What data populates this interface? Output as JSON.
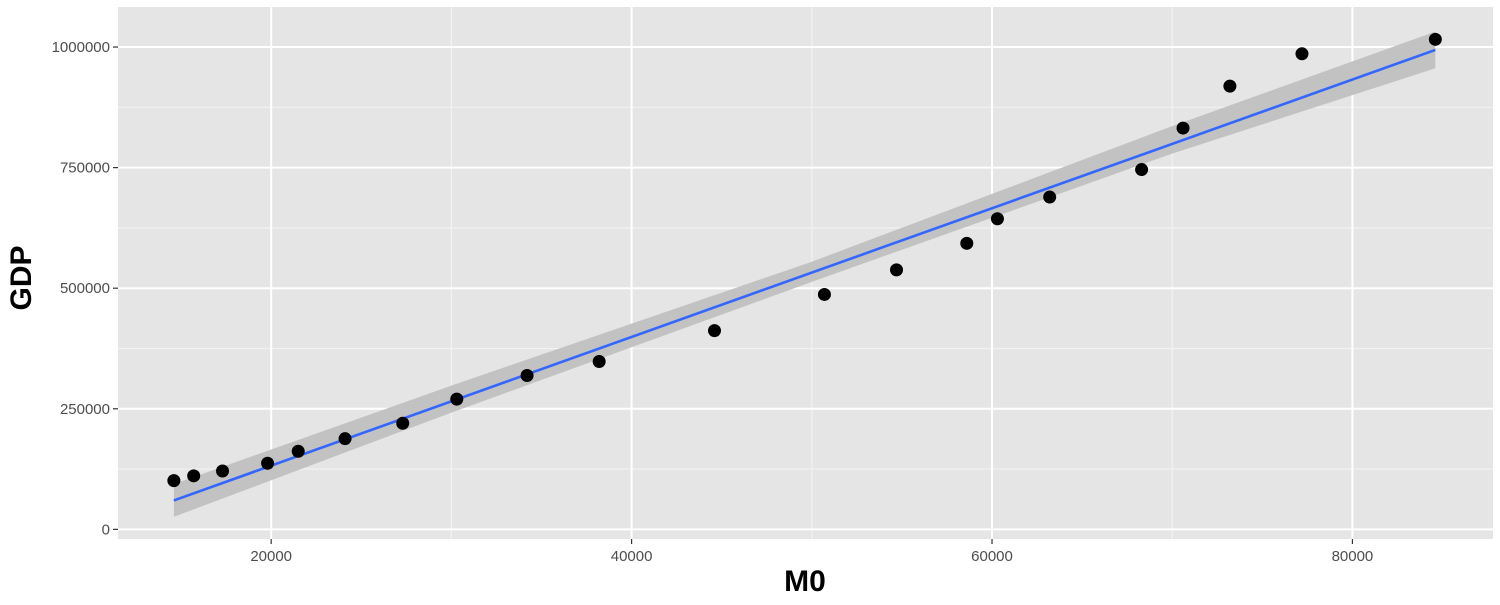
{
  "chart_data": {
    "type": "scatter",
    "title": "",
    "xlabel": "M0",
    "ylabel": "GDP",
    "xlim": [
      11500,
      87800
    ],
    "ylim": [
      -20000,
      1083000
    ],
    "x_ticks": [
      20000,
      40000,
      60000,
      80000
    ],
    "x_tick_labels": [
      "20000",
      "40000",
      "60000",
      "80000"
    ],
    "y_ticks": [
      0,
      250000,
      500000,
      750000,
      1000000
    ],
    "y_tick_labels": [
      "0",
      "250000",
      "500000",
      "750000",
      "1000000"
    ],
    "grid": true,
    "legend": "none",
    "colors": {
      "panel": "#e5e5e5",
      "grid_major": "#ffffff",
      "grid_minor": "#f2f2f2",
      "point": "#000000",
      "fit_line": "#3366ff",
      "band": "#c0c0c0"
    },
    "points": [
      {
        "x": 14600,
        "y": 101000
      },
      {
        "x": 15700,
        "y": 111000
      },
      {
        "x": 17300,
        "y": 121000
      },
      {
        "x": 19800,
        "y": 137000
      },
      {
        "x": 21500,
        "y": 162000
      },
      {
        "x": 24100,
        "y": 188000
      },
      {
        "x": 27300,
        "y": 220000
      },
      {
        "x": 30300,
        "y": 270000
      },
      {
        "x": 34200,
        "y": 319000
      },
      {
        "x": 38200,
        "y": 348000
      },
      {
        "x": 44600,
        "y": 412000
      },
      {
        "x": 50700,
        "y": 487000
      },
      {
        "x": 54700,
        "y": 538000
      },
      {
        "x": 58600,
        "y": 593000
      },
      {
        "x": 60300,
        "y": 644000
      },
      {
        "x": 63200,
        "y": 689000
      },
      {
        "x": 68300,
        "y": 746000
      },
      {
        "x": 70600,
        "y": 832000
      },
      {
        "x": 73200,
        "y": 919000
      },
      {
        "x": 77200,
        "y": 986000
      },
      {
        "x": 84600,
        "y": 1016000
      }
    ],
    "fit_line": {
      "x": [
        14600,
        84600
      ],
      "y": [
        60000,
        994000
      ]
    },
    "confidence_band": {
      "x": [
        14600,
        30000,
        50000,
        70000,
        84600
      ],
      "lower": [
        26000,
        242000,
        513000,
        779000,
        956000
      ],
      "upper": [
        94000,
        298000,
        555000,
        836000,
        1032000
      ]
    }
  }
}
